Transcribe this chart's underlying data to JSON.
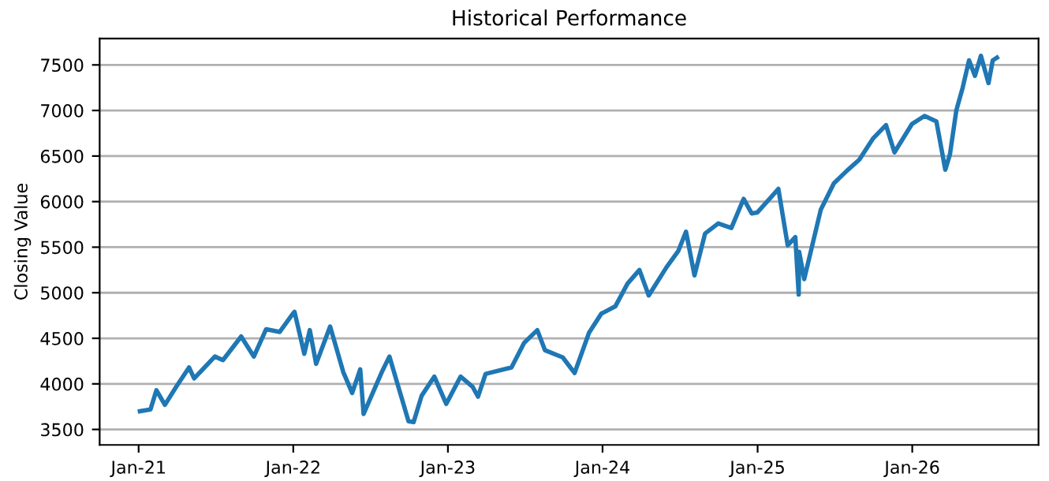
{
  "chart_data": {
    "type": "line",
    "title": "Historical Performance",
    "ylabel": "Closing Value",
    "x": [
      "2021-01-04",
      "2021-01-29",
      "2021-02-12",
      "2021-03-04",
      "2021-03-31",
      "2021-04-30",
      "2021-05-12",
      "2021-06-30",
      "2021-07-19",
      "2021-08-31",
      "2021-09-30",
      "2021-10-29",
      "2021-11-30",
      "2021-12-31",
      "2022-01-04",
      "2022-01-27",
      "2022-02-09",
      "2022-02-24",
      "2022-03-29",
      "2022-04-29",
      "2022-05-20",
      "2022-06-08",
      "2022-06-16",
      "2022-07-29",
      "2022-08-16",
      "2022-09-30",
      "2022-10-12",
      "2022-10-31",
      "2022-11-30",
      "2022-12-28",
      "2023-01-31",
      "2023-02-28",
      "2023-03-13",
      "2023-03-31",
      "2023-05-31",
      "2023-06-30",
      "2023-07-31",
      "2023-08-18",
      "2023-09-29",
      "2023-10-27",
      "2023-11-30",
      "2023-12-29",
      "2024-01-31",
      "2024-02-29",
      "2024-03-28",
      "2024-04-19",
      "2024-05-31",
      "2024-06-28",
      "2024-07-16",
      "2024-08-05",
      "2024-08-30",
      "2024-09-30",
      "2024-10-31",
      "2024-11-29",
      "2024-12-18",
      "2024-12-31",
      "2025-01-31",
      "2025-02-19",
      "2025-03-13",
      "2025-03-31",
      "2025-04-08",
      "2025-04-09",
      "2025-04-21",
      "2025-05-30",
      "2025-06-30",
      "2025-07-31",
      "2025-08-29",
      "2025-09-30",
      "2025-10-31",
      "2025-11-20",
      "2025-12-31",
      "2026-01-30",
      "2026-02-27",
      "2026-03-20",
      "2026-03-31",
      "2026-04-15",
      "2026-04-30",
      "2026-05-15",
      "2026-05-29",
      "2026-06-12",
      "2026-06-30",
      "2026-07-10",
      "2026-07-20"
    ],
    "series": [
      {
        "color": "#1f77b4",
        "values": [
          3700,
          3720,
          3930,
          3770,
          3970,
          4180,
          4060,
          4300,
          4260,
          4520,
          4300,
          4600,
          4570,
          4770,
          4790,
          4330,
          4590,
          4220,
          4630,
          4130,
          3900,
          4160,
          3670,
          4130,
          4300,
          3590,
          3580,
          3870,
          4080,
          3780,
          4080,
          3970,
          3860,
          4110,
          4180,
          4450,
          4590,
          4370,
          4290,
          4120,
          4560,
          4770,
          4850,
          5100,
          5250,
          4970,
          5280,
          5460,
          5670,
          5190,
          5650,
          5760,
          5710,
          6030,
          5870,
          5880,
          6040,
          6140,
          5520,
          5610,
          4980,
          5450,
          5150,
          5910,
          6200,
          6340,
          6460,
          6690,
          6840,
          6540,
          6850,
          6940,
          6880,
          6350,
          6520,
          7000,
          7250,
          7550,
          7380,
          7600,
          7300,
          7550,
          7580
        ]
      }
    ],
    "xlim": [
      "2020-10-01",
      "2026-10-26"
    ],
    "xticks": [
      {
        "value": "2021-01-01",
        "label": "Jan-21"
      },
      {
        "value": "2022-01-01",
        "label": "Jan-22"
      },
      {
        "value": "2023-01-01",
        "label": "Jan-23"
      },
      {
        "value": "2024-01-01",
        "label": "Jan-24"
      },
      {
        "value": "2025-01-01",
        "label": "Jan-25"
      },
      {
        "value": "2026-01-01",
        "label": "Jan-26"
      }
    ],
    "ylim": [
      3330,
      7790
    ],
    "yticks": [
      3500,
      4000,
      4500,
      5000,
      5500,
      6000,
      6500,
      7000,
      7500
    ],
    "grid": "y",
    "line_style": "solid"
  }
}
